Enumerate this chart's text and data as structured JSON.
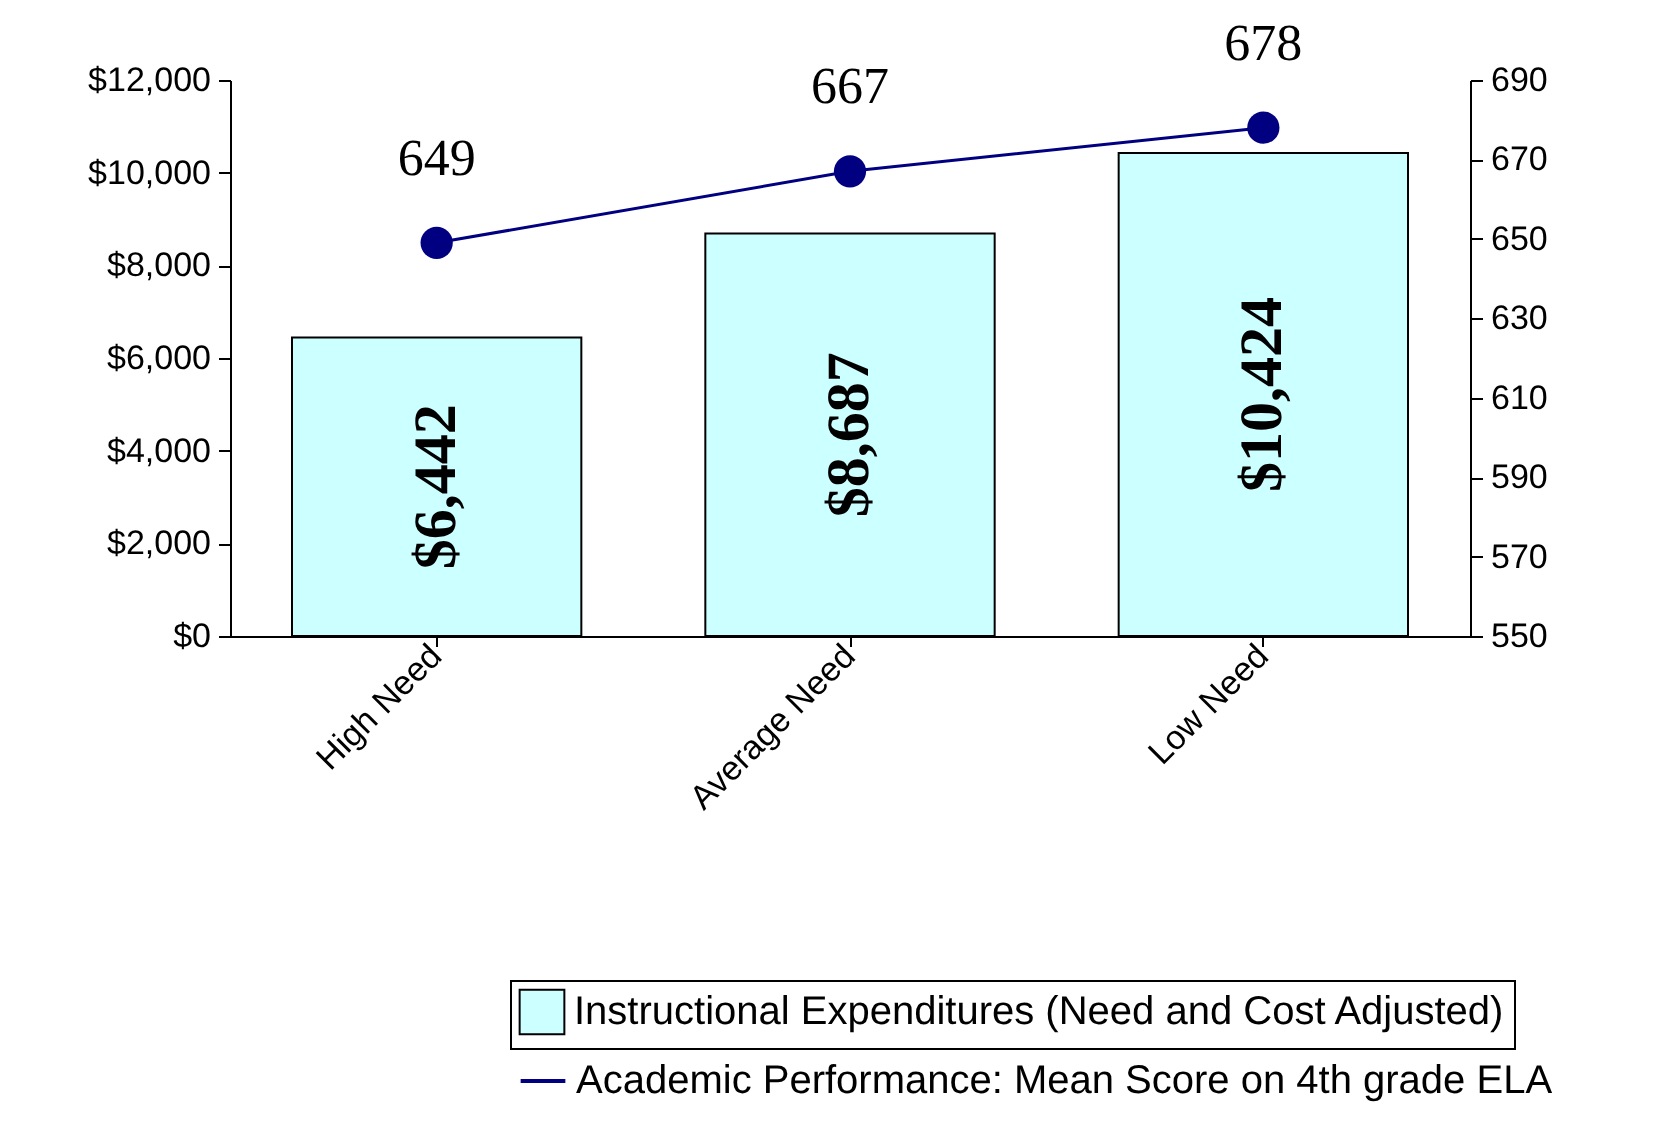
{
  "chart_data": {
    "type": "bar",
    "categories": [
      "High Need",
      "Average Need",
      "Low Need"
    ],
    "series": [
      {
        "name": "Instructional Expenditures (Need and Cost Adjusted)",
        "color": "#ccffff",
        "values": [
          6442,
          8687,
          10424
        ],
        "value_labels": [
          "$6,442",
          "$8,687",
          "$10,424"
        ]
      },
      {
        "name": "Academic Performance:  Mean Score on 4th grade ELA",
        "type": "line",
        "axis": "y2",
        "color": "#000080",
        "values": [
          649,
          667,
          678
        ],
        "value_labels": [
          "649",
          "667",
          "678"
        ]
      }
    ],
    "ylim": [
      0,
      12000
    ],
    "yticks": [
      {
        "value": 0,
        "label": "$0"
      },
      {
        "value": 2000,
        "label": "$2,000"
      },
      {
        "value": 4000,
        "label": "$4,000"
      },
      {
        "value": 6000,
        "label": "$6,000"
      },
      {
        "value": 8000,
        "label": "$8,000"
      },
      {
        "value": 10000,
        "label": "$10,000"
      },
      {
        "value": 12000,
        "label": "$12,000"
      }
    ],
    "y2lim": [
      550,
      690
    ],
    "y2ticks": [
      550,
      570,
      590,
      610,
      630,
      650,
      670,
      690
    ],
    "marker": "circle",
    "grid": false,
    "legend": "bottom right"
  }
}
